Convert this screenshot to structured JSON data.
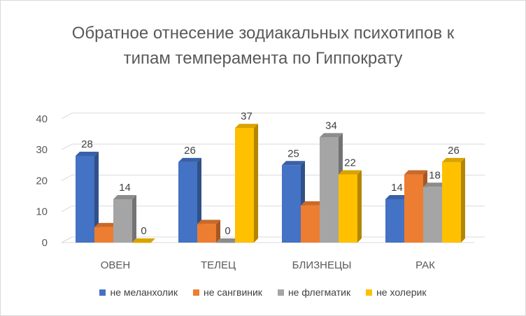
{
  "chart_data": {
    "type": "bar",
    "title": "Обратное отнесение зодиакальных психотипов  к типам темперамента по Гиппократу",
    "categories": [
      "ОВЕН",
      "ТЕЛЕЦ",
      "БЛИЗНЕЦЫ",
      "РАК"
    ],
    "series": [
      {
        "name": "не меланхолик",
        "color": "#4472C4",
        "values": [
          28,
          26,
          25,
          14
        ]
      },
      {
        "name": "не сангвиник",
        "color": "#ED7D31",
        "values": [
          5,
          6,
          12,
          22
        ]
      },
      {
        "name": "не флегматик",
        "color": "#A5A5A5",
        "values": [
          14,
          0,
          34,
          18
        ]
      },
      {
        "name": "не холерик",
        "color": "#FFC000",
        "values": [
          0,
          37,
          22,
          26
        ]
      }
    ],
    "data_labels": {
      "ОВЕН": {
        "не меланхолик": "28",
        "не флегматик": "14",
        "не холерик": "0"
      },
      "ТЕЛЕЦ": {
        "не меланхолик": "26",
        "не флегматик": "0",
        "не холерик": "37"
      },
      "БЛИЗНЕЦЫ": {
        "не меланхолик": "25",
        "не флегматик": "34",
        "не холерик": "22"
      },
      "РАК": {
        "не меланхолик": "14",
        "не сангвиник": "",
        "не флегматик": "18",
        "не холерик": "26"
      }
    },
    "yticks": [
      "0",
      "10",
      "20",
      "30",
      "40"
    ],
    "ylim": [
      0,
      40
    ],
    "grid": true,
    "legend_position": "bottom"
  }
}
